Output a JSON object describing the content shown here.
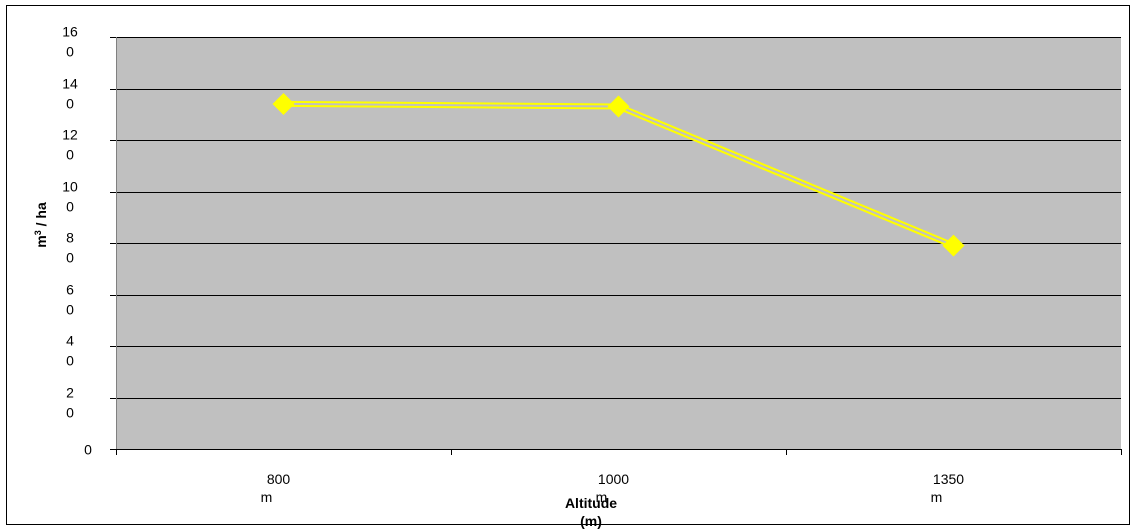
{
  "chart_data": {
    "type": "line",
    "title": "",
    "xlabel": "Altitude (m)",
    "ylabel": "m³ / ha",
    "categories": [
      "800 m",
      "1000 m",
      "1350 m"
    ],
    "x_tick_labels": [
      [
        "800",
        "m"
      ],
      [
        "1000",
        "m"
      ],
      [
        "1350",
        "m"
      ]
    ],
    "series": [
      {
        "values": [
          134,
          133,
          79
        ]
      }
    ],
    "ylim": [
      0,
      160
    ],
    "yticks": [
      0,
      20,
      40,
      60,
      80,
      100,
      120,
      140,
      160
    ],
    "y_tick_labels": [
      [
        "0"
      ],
      [
        "2",
        "0"
      ],
      [
        "4",
        "0"
      ],
      [
        "6",
        "0"
      ],
      [
        "8",
        "0"
      ],
      [
        "10",
        "0"
      ],
      [
        "12",
        "0"
      ],
      [
        "14",
        "0"
      ],
      [
        "16",
        "0"
      ]
    ],
    "grid": true,
    "legend": "none",
    "colors": {
      "plot_background": "#c0c0c0",
      "series_line": "#ffff00",
      "series_marker": "#ffff00",
      "gridline": "#000000"
    }
  }
}
